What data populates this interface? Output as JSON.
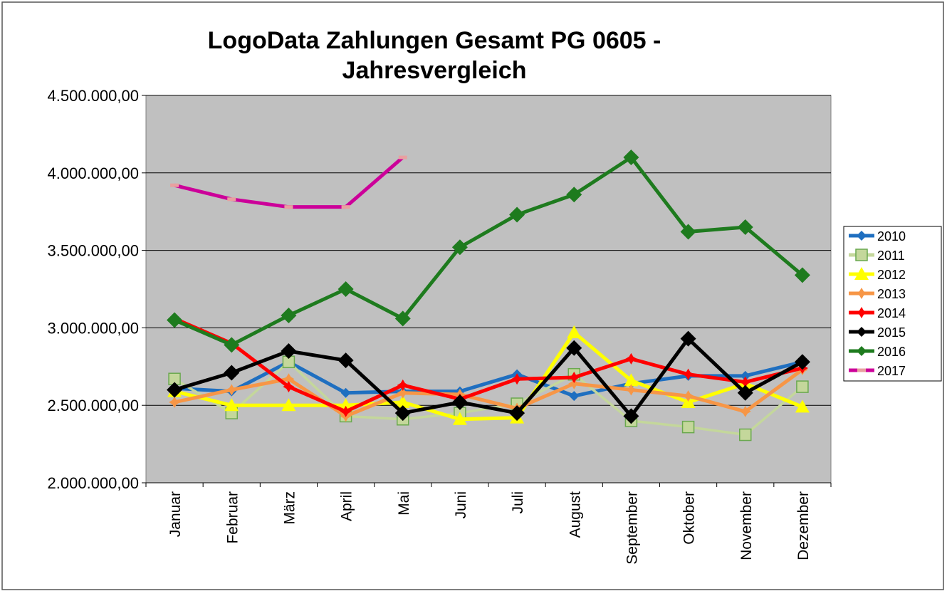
{
  "chart_data": {
    "type": "line",
    "title": "LogoData Zahlungen Gesamt PG 0605 -",
    "subtitle": "Jahresvergleich",
    "categories": [
      "Januar",
      "Februar",
      "März",
      "April",
      "Mai",
      "Juni",
      "Juli",
      "August",
      "September",
      "Oktober",
      "November",
      "Dezember"
    ],
    "ylim": [
      2000000,
      4500000
    ],
    "yticks": [
      {
        "value": 2000000,
        "label": "2.000.000,00"
      },
      {
        "value": 2500000,
        "label": "2.500.000,00"
      },
      {
        "value": 3000000,
        "label": "3.000.000,00"
      },
      {
        "value": 3500000,
        "label": "3.500.000,00"
      },
      {
        "value": 4000000,
        "label": "4.000.000,00"
      },
      {
        "value": 4500000,
        "label": "4.500.000,00"
      }
    ],
    "grid": true,
    "legend": "right",
    "series": [
      {
        "name": "2010",
        "color": "#1f6fc0",
        "marker": "diamond",
        "values": [
          2610000,
          2590000,
          2780000,
          2580000,
          2590000,
          2590000,
          2700000,
          2560000,
          2640000,
          2690000,
          2690000,
          2780000
        ]
      },
      {
        "name": "2011",
        "color": "#c4d79b",
        "marker": "square",
        "values": [
          2670000,
          2450000,
          2780000,
          2430000,
          2410000,
          2450000,
          2510000,
          2700000,
          2400000,
          2360000,
          2310000,
          2620000
        ]
      },
      {
        "name": "2012",
        "color": "#ffff00",
        "marker": "triangle",
        "values": [
          2590000,
          2500000,
          2500000,
          2500000,
          2520000,
          2410000,
          2420000,
          2970000,
          2660000,
          2520000,
          2640000,
          2490000
        ]
      },
      {
        "name": "2013",
        "color": "#f79646",
        "marker": "star",
        "values": [
          2520000,
          2600000,
          2670000,
          2430000,
          2580000,
          2570000,
          2480000,
          2640000,
          2600000,
          2560000,
          2460000,
          2730000
        ]
      },
      {
        "name": "2014",
        "color": "#ff0000",
        "marker": "star",
        "values": [
          3060000,
          2900000,
          2620000,
          2460000,
          2630000,
          2540000,
          2670000,
          2680000,
          2800000,
          2700000,
          2650000,
          2740000
        ]
      },
      {
        "name": "2015",
        "color": "#000000",
        "marker": "bigdiamond",
        "values": [
          2600000,
          2710000,
          2850000,
          2790000,
          2450000,
          2520000,
          2450000,
          2870000,
          2430000,
          2930000,
          2580000,
          2780000
        ]
      },
      {
        "name": "2016",
        "color": "#1e7b1e",
        "marker": "bigdiamond",
        "values": [
          3050000,
          2890000,
          3080000,
          3250000,
          3060000,
          3520000,
          3730000,
          3860000,
          4100000,
          3620000,
          3650000,
          3340000
        ]
      },
      {
        "name": "2017",
        "color": "#cc0099",
        "marker": "dash",
        "values": [
          3920000,
          3830000,
          3780000,
          3780000,
          4100000,
          null,
          null,
          null,
          null,
          null,
          null,
          null
        ]
      }
    ]
  }
}
